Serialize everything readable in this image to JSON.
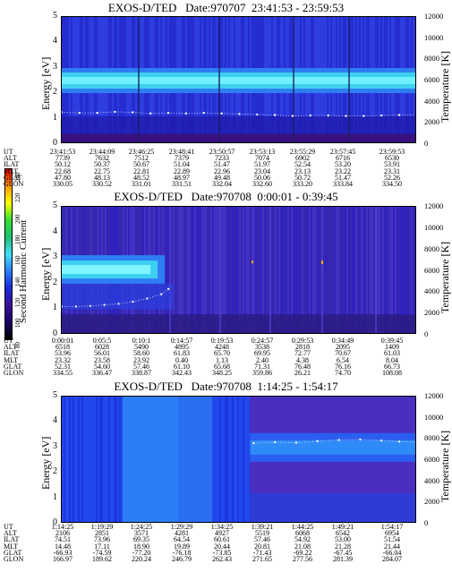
{
  "colorbar": {
    "label": "Second Harmonic Current",
    "ticks": [
      "240",
      "220",
      "200",
      "180",
      "160",
      "140",
      "120",
      "100",
      "80"
    ],
    "colors": [
      "#000000",
      "#3a1099",
      "#1a2ad8",
      "#2a7cff",
      "#40e0ff",
      "#20c070",
      "#30e030",
      "#ffff00",
      "#ff0000"
    ]
  },
  "chart_data": [
    {
      "type": "heatmap",
      "title": "EXOS-D/TED   Date:970707  23:41:53 - 23:59:53",
      "ylabel": "Energy [eV]",
      "y2label": "Temperature [K]",
      "ylim": [
        0,
        5
      ],
      "y2lim": [
        0,
        12000
      ],
      "yticks": [
        "0",
        "1",
        "2",
        "3",
        "4",
        "5"
      ],
      "y2ticks": [
        "0",
        "2000",
        "4000",
        "6000",
        "8000",
        "10000",
        "12000"
      ],
      "ephemeris_rows": [
        "UT",
        "ALT",
        "ILAT",
        "MLT",
        "GLAT",
        "GLON"
      ],
      "ephemeris": [
        [
          "23:41:53",
          "23:44:09",
          "23:46:25",
          "23:48:41",
          "23:50:57",
          "23:53:13",
          "23:55:29",
          "23:57:45",
          "23:59:53"
        ],
        [
          "7739",
          "7632",
          "7512",
          "7379",
          "7233",
          "7074",
          "6902",
          "6716",
          "6530"
        ],
        [
          "50.12",
          "50.37",
          "50.67",
          "51.04",
          "51.47",
          "51.97",
          "52.54",
          "53.20",
          "53.91"
        ],
        [
          "22.68",
          "22.75",
          "22.81",
          "22.89",
          "22.96",
          "23.04",
          "23.13",
          "23.22",
          "23.31"
        ],
        [
          "47.80",
          "48.13",
          "48.52",
          "48.97",
          "49.48",
          "50.06",
          "50.72",
          "51.47",
          "52.26"
        ],
        [
          "330.05",
          "330.52",
          "331.01",
          "331.51",
          "332.04",
          "332.60",
          "333.20",
          "333.84",
          "334.50"
        ]
      ],
      "band_energy": 2.5,
      "temperature_trace": [
        [
          0.0,
          3000
        ],
        [
          0.05,
          2950
        ],
        [
          0.1,
          2950
        ],
        [
          0.15,
          3050
        ],
        [
          0.2,
          3000
        ],
        [
          0.25,
          2900
        ],
        [
          0.3,
          2950
        ],
        [
          0.35,
          2900
        ],
        [
          0.4,
          2950
        ],
        [
          0.45,
          2900
        ],
        [
          0.5,
          2850
        ],
        [
          0.55,
          2800
        ],
        [
          0.6,
          2750
        ],
        [
          0.65,
          2650
        ],
        [
          0.7,
          2700
        ],
        [
          0.75,
          2700
        ],
        [
          0.8,
          2650
        ],
        [
          0.85,
          2650
        ],
        [
          0.9,
          2700
        ],
        [
          0.95,
          2750
        ],
        [
          1.0,
          2750
        ]
      ]
    },
    {
      "type": "heatmap",
      "title": "EXOS-D/TED   Date:970708  0:00:01 - 0:39:45",
      "ylabel": "Energy [eV]",
      "y2label": "Temperature [K]",
      "ylim": [
        0,
        5
      ],
      "y2lim": [
        0,
        12000
      ],
      "yticks": [
        "0",
        "1",
        "2",
        "3",
        "4",
        "5"
      ],
      "y2ticks": [
        "0",
        "2000",
        "4000",
        "6000",
        "8000",
        "10000",
        "12000"
      ],
      "ephemeris_rows": [
        "UT",
        "ALT",
        "ILAT",
        "MLT",
        "GLAT",
        "GLON"
      ],
      "ephemeris": [
        [
          "0:00:01",
          "0:05:5",
          "0:10:1",
          "0:14:57",
          "0:19:53",
          "0:24:57",
          "0:29:53",
          "0:34:49",
          "0:39:45"
        ],
        [
          "6518",
          "6028",
          "5490",
          "4895",
          "4248",
          "3538",
          "2818",
          "2095",
          "1409"
        ],
        [
          "53.96",
          "56.01",
          "58.60",
          "61.83",
          "65.70",
          "69.95",
          "72.77",
          "70.67",
          "61.03"
        ],
        [
          "23.32",
          "23.58",
          "23.92",
          "0.40",
          "1.13",
          "2.40",
          "4.38",
          "6.54",
          "8.04"
        ],
        [
          "52.31",
          "54.60",
          "57.46",
          "61.10",
          "65.68",
          "71.31",
          "76.48",
          "76.16",
          "66.73"
        ],
        [
          "334.55",
          "336.47",
          "338.87",
          "342.43",
          "348.25",
          "359.86",
          "26.21",
          "74.70",
          "108.08"
        ]
      ],
      "band_energy": 2.55,
      "band_end_fraction": 0.29,
      "temperature_trace": [
        [
          0.0,
          2650
        ],
        [
          0.04,
          2650
        ],
        [
          0.08,
          2700
        ],
        [
          0.12,
          2800
        ],
        [
          0.16,
          2900
        ],
        [
          0.2,
          3100
        ],
        [
          0.24,
          3400
        ],
        [
          0.28,
          3800
        ],
        [
          0.3,
          4300
        ]
      ]
    },
    {
      "type": "heatmap",
      "title": "EXOS-D/TED   Date:970708  1:14:25 - 1:54:17",
      "ylabel": "Energy [eV]",
      "y2label": "Temperature [K]",
      "ylim": [
        0,
        5
      ],
      "y2lim": [
        0,
        12000
      ],
      "yticks": [
        "0",
        "1",
        "2",
        "3",
        "4",
        "5"
      ],
      "y2ticks": [
        "0",
        "2000",
        "4000",
        "6000",
        "8000",
        "10000",
        "12000"
      ],
      "ephemeris_rows": [
        "UT",
        "ALT",
        "ILAT",
        "MLT",
        "GLAT",
        "GLON"
      ],
      "ephemeris": [
        [
          "1:14:25",
          "1:19:29",
          "1:24:25",
          "1:29:29",
          "1:34:25",
          "1:39:21",
          "1:44:25",
          "1:49:21",
          "1:54:17"
        ],
        [
          "2106",
          "2851",
          "3571",
          "4281",
          "4927",
          "5519",
          "6068",
          "6542",
          "6954"
        ],
        [
          "74.51",
          "73.96",
          "69.35",
          "64.54",
          "60.61",
          "57.46",
          "54.92",
          "53.00",
          "51.54"
        ],
        [
          "14.48",
          "17.11",
          "18.90",
          "19.89",
          "20.44",
          "20.81",
          "21.08",
          "21.28",
          "21.44"
        ],
        [
          "-66.93",
          "-74.59",
          "-77.20",
          "-76.18",
          "-73.85",
          "-71.43",
          "-69.22",
          "-67.45",
          "-66.04"
        ],
        [
          "166.97",
          "189.62",
          "220.24",
          "246.79",
          "262.43",
          "271.65",
          "277.56",
          "281.39",
          "284.07"
        ]
      ],
      "band_energy": 3.0,
      "band_start_fraction": 0.53,
      "temperature_trace": [
        [
          0.54,
          7600
        ],
        [
          0.6,
          7700
        ],
        [
          0.66,
          7650
        ],
        [
          0.72,
          7800
        ],
        [
          0.78,
          7900
        ],
        [
          0.84,
          7950
        ],
        [
          0.9,
          7850
        ],
        [
          0.95,
          7750
        ],
        [
          1.0,
          7700
        ]
      ]
    }
  ]
}
